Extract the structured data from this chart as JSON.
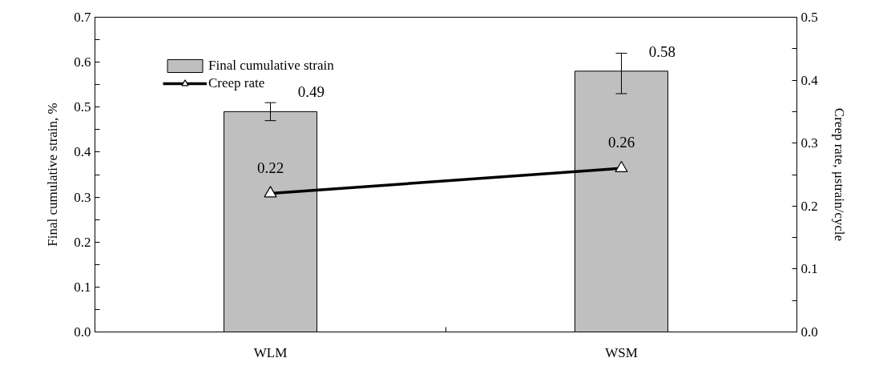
{
  "chart_data": {
    "type": "bar",
    "categories": [
      "WLM",
      "WSM"
    ],
    "ylabel": "Final cumulative strain, %",
    "y2label": "Creep rate, μstrain/cycle",
    "series": [
      {
        "name": "Final cumulative strain",
        "color": "#bfbfbf",
        "values": [
          0.49,
          0.58
        ],
        "errors": [
          [
            0.47,
            0.51
          ],
          [
            0.53,
            0.62
          ]
        ]
      },
      {
        "name": "Creep rate",
        "type": "line",
        "color": "#000000",
        "axis": "y2",
        "marker": "triangle",
        "values": [
          0.22,
          0.26
        ]
      }
    ],
    "ylim": [
      0,
      0.7
    ],
    "yticks": [
      "0.0",
      {
        "value": 0.05,
        "label": null
      },
      0.1,
      {
        "value": 0.15,
        "label": null
      },
      0.2,
      {
        "value": 0.25,
        "label": null
      },
      0.3,
      {
        "value": 0.35,
        "label": null
      },
      0.4,
      {
        "value": 0.45,
        "label": null
      },
      0.5,
      {
        "value": 0.55,
        "label": null
      },
      0.6,
      {
        "value": 0.65,
        "label": null
      },
      0.7
    ],
    "y2lim": [
      0,
      0.5
    ],
    "y2ticks": [
      "0.0",
      {
        "value": 0.05,
        "label": null
      },
      0.1,
      {
        "value": 0.15,
        "label": null
      },
      0.2,
      {
        "value": 0.25,
        "label": null
      },
      0.3,
      {
        "value": 0.35,
        "label": null
      },
      0.4,
      {
        "value": 0.45,
        "label": null
      },
      0.5
    ],
    "data_labels": true,
    "grid": false,
    "legend": "top left"
  }
}
